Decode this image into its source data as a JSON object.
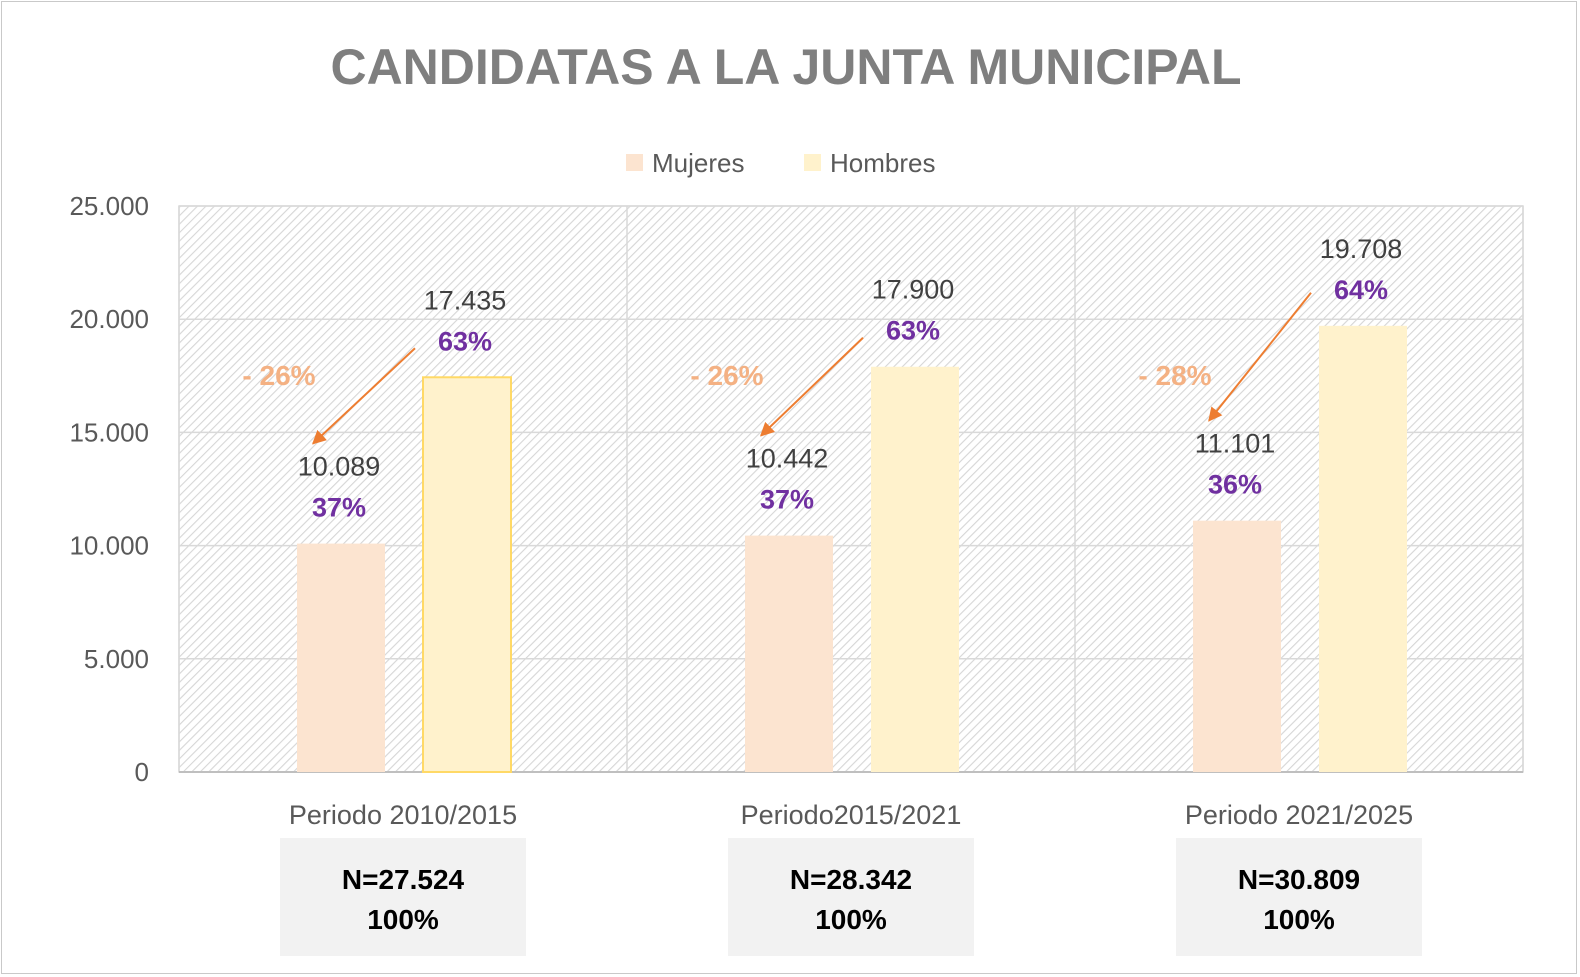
{
  "chart_data": {
    "type": "bar",
    "title": "CANDIDATAS A LA JUNTA MUNICIPAL",
    "categories": [
      "Periodo 2010/2015",
      "Periodo2015/2021",
      "Periodo 2021/2025"
    ],
    "series": [
      {
        "name": "Mujeres",
        "color": "#fce4d0",
        "values": [
          10089,
          10442,
          11101
        ],
        "value_labels": [
          "10.089",
          "10.442",
          "11.101"
        ],
        "pct_labels": [
          "37%",
          "37%",
          "36%"
        ]
      },
      {
        "name": "Hombres",
        "color": "#fff2cc",
        "values": [
          17435,
          17900,
          19708
        ],
        "value_labels": [
          "17.435",
          "17.900",
          "19.708"
        ],
        "pct_labels": [
          "63%",
          "63%",
          "64%"
        ]
      }
    ],
    "gap_labels": [
      "- 26%",
      "- 26%",
      "- 28%"
    ],
    "totals": [
      "N=27.524",
      "N=28.342",
      "N=30.809"
    ],
    "total_pct": [
      "100%",
      "100%",
      "100%"
    ],
    "yticks": [
      "0",
      "5.000",
      "10.000",
      "15.000",
      "20.000",
      "25.000"
    ],
    "ylim": [
      0,
      25000
    ],
    "grid": true,
    "legend": "top-center",
    "colors": {
      "title": "#7f7f7f",
      "percent": "#7030a0",
      "gap": "#f4b183",
      "arrow": "#ed7d31",
      "total_box": "#f2f2f2"
    }
  }
}
